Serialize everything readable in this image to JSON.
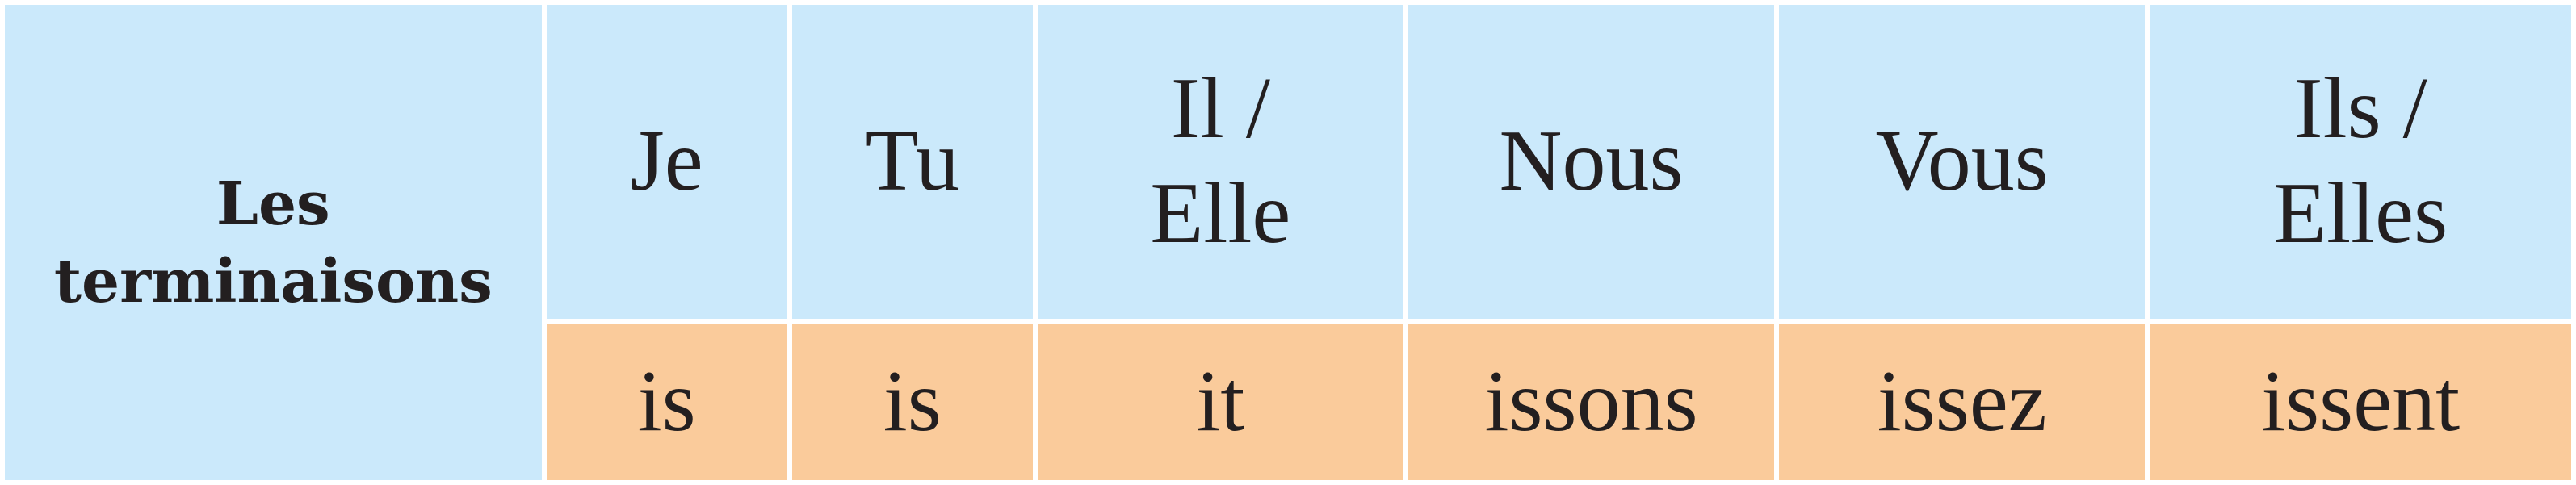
{
  "table": {
    "row_label": {
      "line1": "Les",
      "line2": "terminaisons"
    },
    "pronouns": [
      {
        "line1": "Je",
        "line2": ""
      },
      {
        "line1": "Tu",
        "line2": ""
      },
      {
        "line1": "Il /",
        "line2": "Elle"
      },
      {
        "line1": "Nous",
        "line2": ""
      },
      {
        "line1": "Vous",
        "line2": ""
      },
      {
        "line1": "Ils /",
        "line2": "Elles"
      }
    ],
    "endings": [
      "is",
      "is",
      "it",
      "issons",
      "issez",
      "issent"
    ]
  },
  "colors": {
    "header_background": "#cbe9fb",
    "ending_background": "#facb9b",
    "text": "#231f20",
    "grid_lines": "#ffffff"
  }
}
